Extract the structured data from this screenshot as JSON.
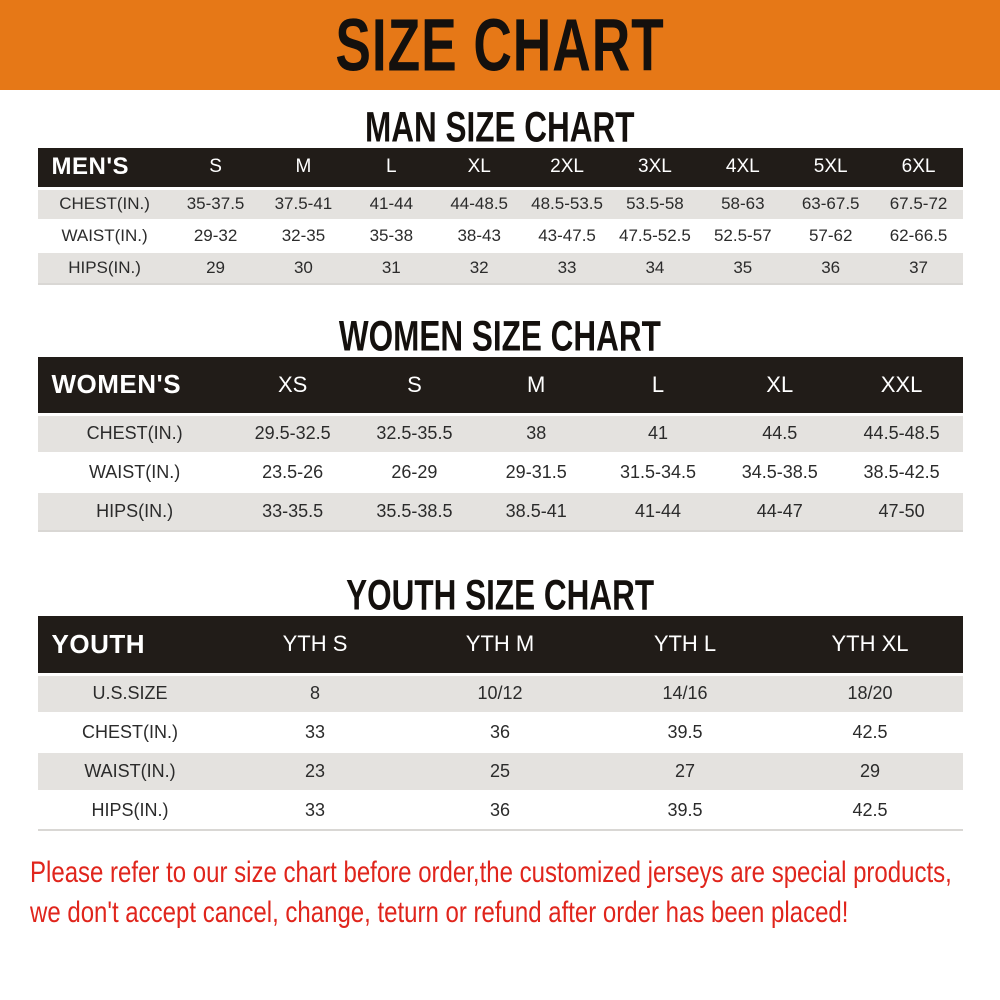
{
  "banner": {
    "title": "SIZE CHART"
  },
  "colors": {
    "accent_orange": "#E67817",
    "header_black": "#211C18",
    "stripe_gray": "#E4E2DF",
    "warning_red": "#E0251C"
  },
  "chart_data": [
    {
      "type": "table",
      "title": "MAN SIZE CHART",
      "header": [
        "MEN'S",
        "S",
        "M",
        "L",
        "XL",
        "2XL",
        "3XL",
        "4XL",
        "5XL",
        "6XL"
      ],
      "rows": [
        [
          "CHEST(IN.)",
          "35-37.5",
          "37.5-41",
          "41-44",
          "44-48.5",
          "48.5-53.5",
          "53.5-58",
          "58-63",
          "63-67.5",
          "67.5-72"
        ],
        [
          "WAIST(IN.)",
          "29-32",
          "32-35",
          "35-38",
          "38-43",
          "43-47.5",
          "47.5-52.5",
          "52.5-57",
          "57-62",
          "62-66.5"
        ],
        [
          "HIPS(IN.)",
          "29",
          "30",
          "31",
          "32",
          "33",
          "34",
          "35",
          "36",
          "37"
        ]
      ]
    },
    {
      "type": "table",
      "title": "WOMEN SIZE CHART",
      "header": [
        "WOMEN'S",
        "XS",
        "S",
        "M",
        "L",
        "XL",
        "XXL"
      ],
      "rows": [
        [
          "CHEST(IN.)",
          "29.5-32.5",
          "32.5-35.5",
          "38",
          "41",
          "44.5",
          "44.5-48.5"
        ],
        [
          "WAIST(IN.)",
          "23.5-26",
          "26-29",
          "29-31.5",
          "31.5-34.5",
          "34.5-38.5",
          "38.5-42.5"
        ],
        [
          "HIPS(IN.)",
          "33-35.5",
          "35.5-38.5",
          "38.5-41",
          "41-44",
          "44-47",
          "47-50"
        ]
      ]
    },
    {
      "type": "table",
      "title": "YOUTH SIZE CHART",
      "header": [
        "YOUTH",
        "YTH S",
        "YTH M",
        "YTH L",
        "YTH XL"
      ],
      "rows": [
        [
          "U.S.SIZE",
          "8",
          "10/12",
          "14/16",
          "18/20"
        ],
        [
          "CHEST(IN.)",
          "33",
          "36",
          "39.5",
          "42.5"
        ],
        [
          "WAIST(IN.)",
          "23",
          "25",
          "27",
          "29"
        ],
        [
          "HIPS(IN.)",
          "33",
          "36",
          "39.5",
          "42.5"
        ]
      ]
    }
  ],
  "disclaimer": {
    "line1": "Please refer to our size chart before order,the customized jerseys are special products,",
    "line2": "we don't accept cancel, change, teturn or refund after order has been placed!"
  }
}
